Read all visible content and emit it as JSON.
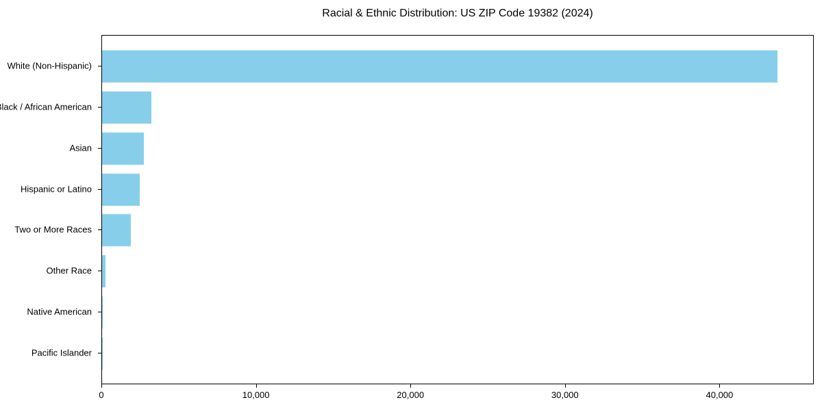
{
  "chart_data": {
    "type": "bar",
    "orientation": "horizontal",
    "title": "Racial & Ethnic Distribution: US ZIP Code 19382 (2024)",
    "categories": [
      "White (Non-Hispanic)",
      "Black / African American",
      "Asian",
      "Hispanic or Latino",
      "Two or More Races",
      "Other Race",
      "Native American",
      "Pacific Islander"
    ],
    "values": [
      43800,
      3200,
      2730,
      2440,
      1850,
      200,
      40,
      15
    ],
    "xlabel": "",
    "ylabel": "",
    "xlim": [
      0,
      46100
    ],
    "x_ticks": [
      0,
      10000,
      20000,
      30000,
      40000
    ],
    "x_tick_labels": [
      "0",
      "10,000",
      "20,000",
      "30,000",
      "40,000"
    ],
    "bar_color": "#87CEEB",
    "text_color": "#000000",
    "background_color": "#ffffff",
    "grid": false,
    "legend": null
  }
}
